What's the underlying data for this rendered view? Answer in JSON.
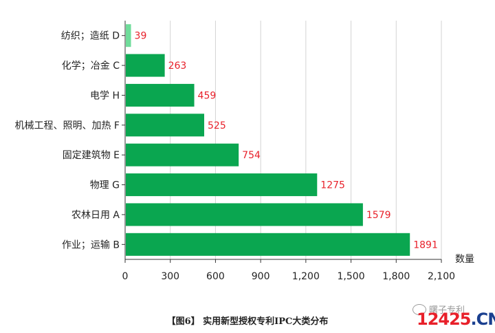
{
  "chart_data": {
    "type": "bar",
    "orientation": "horizontal",
    "categories": [
      "纺织；造纸 D",
      "化学；冶金 C",
      "电学 H",
      "机械工程、照明、加热 F",
      "固定建筑物 E",
      "物理 G",
      "农林日用 A",
      "作业；运输 B"
    ],
    "values": [
      39,
      263,
      459,
      525,
      754,
      1275,
      1579,
      1891
    ],
    "data_labels": [
      "39",
      "263",
      "459",
      "525",
      "754",
      "1275",
      "1579",
      "1891"
    ],
    "bar_colors": [
      "#6fdc9a",
      "#0aa650",
      "#0aa650",
      "#0aa650",
      "#0aa650",
      "#0aa650",
      "#0aa650",
      "#0aa650"
    ],
    "xlabel": "数量",
    "xlim": [
      0,
      2100
    ],
    "ticks": [
      0,
      300,
      600,
      900,
      1200,
      1500,
      1800,
      2100
    ],
    "tick_labels": [
      "0",
      "300",
      "600",
      "900",
      "1,200",
      "1,500",
      "1,800",
      "2,100"
    ],
    "grid": true,
    "label_color": "#e8202a"
  },
  "caption": "【图6】 实用新型授权专利IPC大类分布",
  "watermark": {
    "top": "曙子专利",
    "number": "12425",
    "suffix": ".CN"
  }
}
